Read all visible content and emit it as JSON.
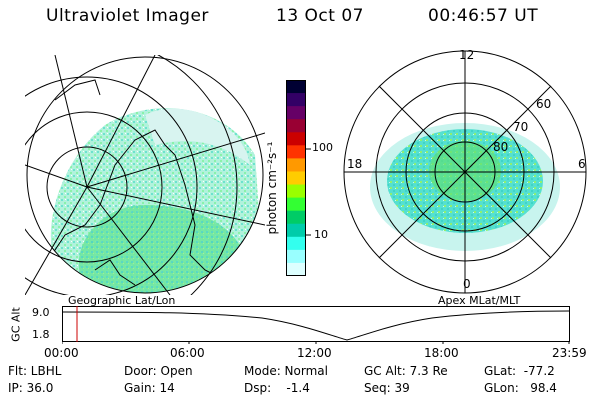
{
  "header": {
    "instrument": "Ultraviolet Imager",
    "date": "13 Oct 07",
    "time": "00:46:57 UT"
  },
  "left_panel": {
    "caption": "Geographic Lat/Lon",
    "image": "polar-auroral-image-geographic-grid"
  },
  "right_panel": {
    "caption": "Apex MLat/MLT",
    "lat_labels": [
      "60",
      "70",
      "80"
    ],
    "mlt_labels": {
      "top": "12",
      "bottom": "0",
      "left": "18",
      "right": "6"
    }
  },
  "colorbar": {
    "label": "photon cm⁻²s⁻¹",
    "ticks": [
      "100",
      "10"
    ],
    "colors": [
      "#000033",
      "#330066",
      "#660066",
      "#990033",
      "#cc0000",
      "#ff3300",
      "#ff9900",
      "#ffcc00",
      "#99ff00",
      "#33ff33",
      "#00cc66",
      "#00ccaa",
      "#33ffee",
      "#99ffff",
      "#ddffff"
    ]
  },
  "timeline": {
    "ylabel": "GC Alt",
    "y_ticks": [
      "9.0",
      "1.8"
    ],
    "x_ticks": [
      "00:00",
      "06:00",
      "12:00",
      "18:00",
      "23:59"
    ],
    "marker_color": "#cc0000"
  },
  "info": {
    "flt": "Flt: LBHL",
    "ip": "IP: 36.0",
    "door": "Door: Open",
    "gain": "Gain: 14",
    "mode": "Mode: Normal",
    "dsp": "Dsp:    -1.4",
    "gcalt": "GC Alt: 7.3 Re",
    "seq": "Seq: 39",
    "glat": "GLat:  -77.2",
    "glon": "GLon:   98.4"
  }
}
